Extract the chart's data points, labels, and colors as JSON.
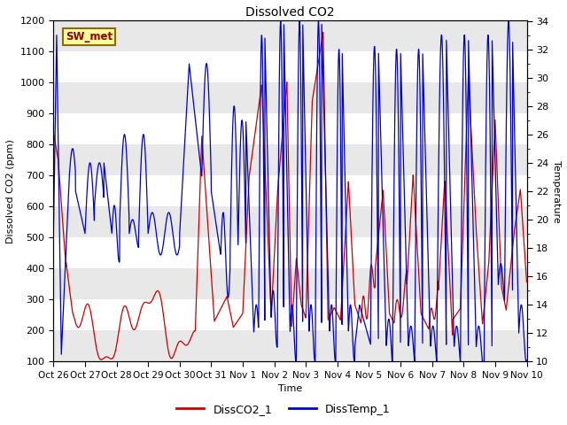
{
  "title": "Dissolved CO2",
  "ylabel_left": "Dissolved CO2 (ppm)",
  "ylabel_right": "Temperature",
  "xlabel": "Time",
  "ylim_left": [
    100,
    1200
  ],
  "ylim_right": [
    10,
    34
  ],
  "legend_labels": [
    "DissCO2_1",
    "DissTemp_1"
  ],
  "color_co2": "#cc0000",
  "color_temp": "#0000cc",
  "station_label": "SW_met",
  "xtick_labels": [
    "Oct 26",
    "Oct 27",
    "Oct 28",
    "Oct 29",
    "Oct 30",
    "Oct 31",
    "Nov 1",
    "Nov 2",
    "Nov 3",
    "Nov 4",
    "Nov 5",
    "Nov 6",
    "Nov 7",
    "Nov 8",
    "Nov 9",
    "Nov 10"
  ],
  "band_light": "#e8e8e8",
  "background_color": "#e8e8e8",
  "band_white": "#ffffff"
}
